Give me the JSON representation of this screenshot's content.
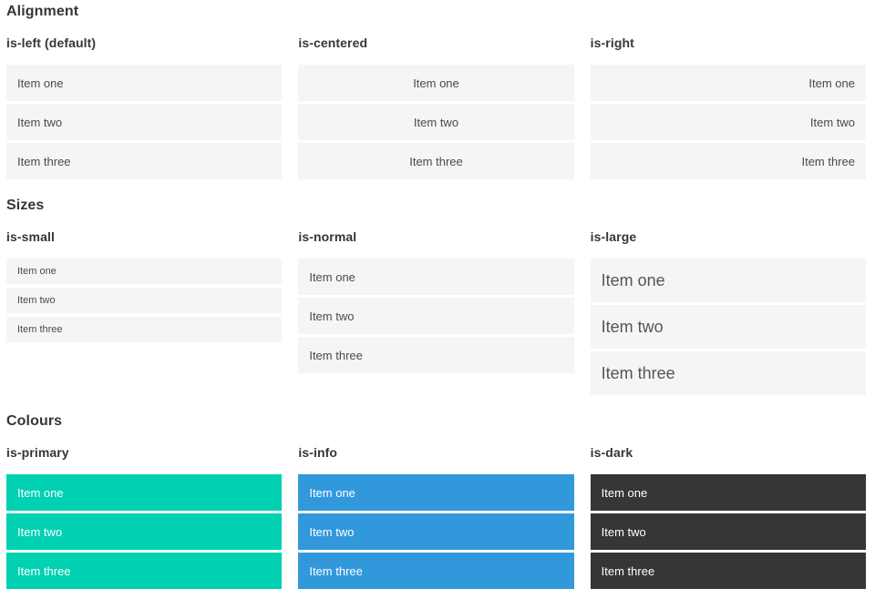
{
  "palette": {
    "item_bg": "#f5f5f5",
    "item_text": "#4a4a4a",
    "heading": "#363636",
    "primary": "#00d1b2",
    "info": "#3298dc",
    "dark": "#363636",
    "colored_text": "#ffffff"
  },
  "sections": [
    {
      "title": "Alignment",
      "columns": [
        {
          "subtitle": "is-left (default)",
          "items": [
            "Item one",
            "Item two",
            "Item three"
          ]
        },
        {
          "subtitle": "is-centered",
          "items": [
            "Item one",
            "Item two",
            "Item three"
          ]
        },
        {
          "subtitle": "is-right",
          "items": [
            "Item one",
            "Item two",
            "Item three"
          ]
        }
      ]
    },
    {
      "title": "Sizes",
      "columns": [
        {
          "subtitle": "is-small",
          "items": [
            "Item one",
            "Item two",
            "Item three"
          ]
        },
        {
          "subtitle": "is-normal",
          "items": [
            "Item one",
            "Item two",
            "Item three"
          ]
        },
        {
          "subtitle": "is-large",
          "items": [
            "Item one",
            "Item two",
            "Item three"
          ]
        }
      ]
    },
    {
      "title": "Colours",
      "columns": [
        {
          "subtitle": "is-primary",
          "color": "#00d1b2",
          "items": [
            "Item one",
            "Item two",
            "Item three"
          ]
        },
        {
          "subtitle": "is-info",
          "color": "#3298dc",
          "items": [
            "Item one",
            "Item two",
            "Item three"
          ]
        },
        {
          "subtitle": "is-dark",
          "color": "#363636",
          "items": [
            "Item one",
            "Item two",
            "Item three"
          ]
        }
      ]
    }
  ]
}
